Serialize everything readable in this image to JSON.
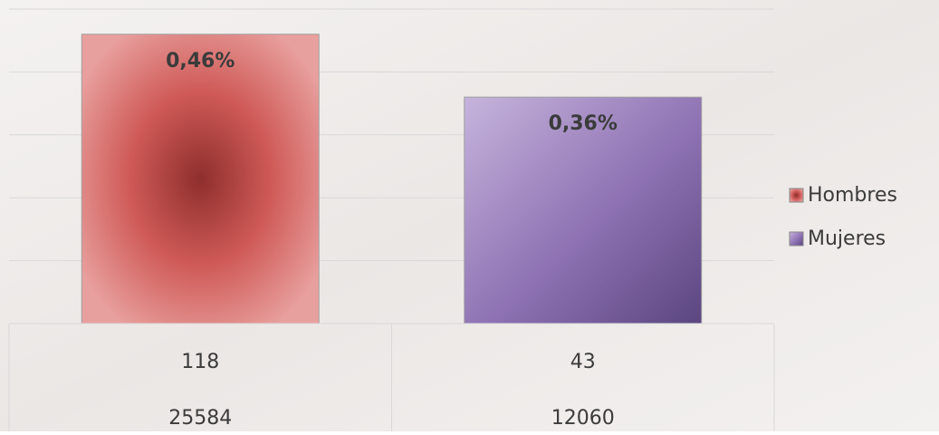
{
  "chart_data": {
    "type": "bar",
    "categories": [
      null,
      null
    ],
    "series": [
      {
        "name": "Hombres",
        "color": "#c0504d",
        "values": [
          0.46,
          null
        ],
        "value_labels": [
          "0,46%",
          null
        ]
      },
      {
        "name": "Mujeres",
        "color": "#8064a2",
        "values": [
          null,
          0.36
        ],
        "value_labels": [
          null,
          "0,36%"
        ]
      }
    ],
    "ylim": [
      0,
      0.5
    ],
    "yticks": [
      0,
      0.1,
      0.2,
      0.3,
      0.4,
      0.5
    ],
    "grid": true,
    "legend": "right",
    "data_table": {
      "rows": [
        [
          118,
          43
        ],
        [
          25584,
          12060
        ]
      ]
    }
  }
}
